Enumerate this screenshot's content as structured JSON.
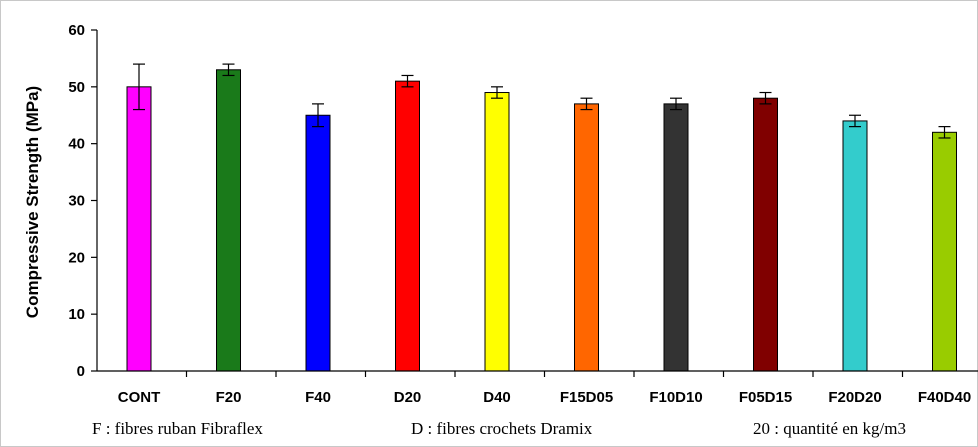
{
  "chart_data": {
    "type": "bar",
    "ylabel": "Compressive Strength (MPa)",
    "xlabel": "",
    "ylim": [
      0,
      60
    ],
    "yticks": [
      0,
      10,
      20,
      30,
      40,
      50,
      60
    ],
    "grid": false,
    "legend": "none",
    "categories": [
      "CONT",
      "F20",
      "F40",
      "D20",
      "D40",
      "F15D05",
      "F10D10",
      "F05D15",
      "F20D20",
      "F40D40"
    ],
    "values": [
      50,
      53,
      45,
      51,
      49,
      47,
      47,
      48,
      44,
      42
    ],
    "errors": [
      4,
      1,
      2,
      1,
      1,
      1,
      1,
      1,
      1,
      1
    ],
    "colors": [
      "#ff00ff",
      "#1a7a1a",
      "#0000ff",
      "#ff0000",
      "#ffff00",
      "#ff6600",
      "#333333",
      "#800000",
      "#33cccc",
      "#99cc00"
    ]
  },
  "notes": {
    "f_note": "F : fibres ruban Fibraflex",
    "d_note": "D : fibres crochets Dramix",
    "q_note": "20 : quantité en kg/m3"
  }
}
